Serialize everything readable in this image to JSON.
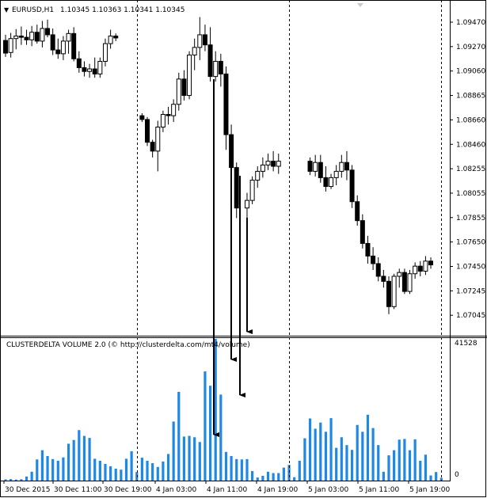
{
  "header": {
    "symbol": "EURUSD,H1",
    "ohlc": "1.10345 1.10363 1.10341 1.10345",
    "indicator": "CLUSTERDELTA VOLUME 2.0 (© http://clusterdelta.com/mt4/volume)"
  },
  "chart_data": [
    {
      "type": "candlestick",
      "title": "EURUSD,H1",
      "ylim": [
        1.0695,
        1.0958
      ],
      "y_ticks": [
        "1.09470",
        "1.09270",
        "1.09060",
        "1.08865",
        "1.08660",
        "1.08460",
        "1.08255",
        "1.08055",
        "1.07855",
        "1.07650",
        "1.07450",
        "1.07245",
        "1.07045"
      ],
      "candles": [
        {
          "o": 1.09285,
          "h": 1.0933,
          "l": 1.09155,
          "c": 1.09185
        },
        {
          "o": 1.0919,
          "h": 1.09345,
          "l": 1.0915,
          "c": 1.093
        },
        {
          "o": 1.093,
          "h": 1.09375,
          "l": 1.09215,
          "c": 1.0932
        },
        {
          "o": 1.0932,
          "h": 1.09395,
          "l": 1.0925,
          "c": 1.0931
        },
        {
          "o": 1.0931,
          "h": 1.0937,
          "l": 1.0925,
          "c": 1.0929
        },
        {
          "o": 1.0929,
          "h": 1.094,
          "l": 1.0924,
          "c": 1.0935
        },
        {
          "o": 1.0935,
          "h": 1.0941,
          "l": 1.0926,
          "c": 1.0928
        },
        {
          "o": 1.0928,
          "h": 1.0944,
          "l": 1.0923,
          "c": 1.0938
        },
        {
          "o": 1.0938,
          "h": 1.0945,
          "l": 1.0931,
          "c": 1.0933
        },
        {
          "o": 1.0933,
          "h": 1.0938,
          "l": 1.0917,
          "c": 1.0921
        },
        {
          "o": 1.0921,
          "h": 1.093,
          "l": 1.0914,
          "c": 1.0918
        },
        {
          "o": 1.0918,
          "h": 1.0932,
          "l": 1.0913,
          "c": 1.0928
        },
        {
          "o": 1.0928,
          "h": 1.0937,
          "l": 1.0918,
          "c": 1.0934
        },
        {
          "o": 1.0934,
          "h": 1.0939,
          "l": 1.0912,
          "c": 1.0914
        },
        {
          "o": 1.0914,
          "h": 1.092,
          "l": 1.0903,
          "c": 1.0907
        },
        {
          "o": 1.0907,
          "h": 1.0912,
          "l": 1.09,
          "c": 1.0904
        },
        {
          "o": 1.0904,
          "h": 1.091,
          "l": 1.0899,
          "c": 1.0906
        },
        {
          "o": 1.0906,
          "h": 1.0915,
          "l": 1.0899,
          "c": 1.0902
        },
        {
          "o": 1.0902,
          "h": 1.0915,
          "l": 1.0899,
          "c": 1.0912
        },
        {
          "o": 1.0912,
          "h": 1.093,
          "l": 1.0908,
          "c": 1.0926
        },
        {
          "o": 1.0926,
          "h": 1.0937,
          "l": 1.0922,
          "c": 1.0932
        },
        {
          "o": 1.0932,
          "h": 1.0934,
          "l": 1.0928,
          "c": 1.09305
        },
        {
          "o": 1.0869,
          "h": 1.0871,
          "l": 1.0864,
          "c": 1.0866
        },
        {
          "o": 1.0866,
          "h": 1.0868,
          "l": 1.0845,
          "c": 1.0848
        },
        {
          "o": 1.0848,
          "h": 1.085,
          "l": 1.0836,
          "c": 1.0841
        },
        {
          "o": 1.0841,
          "h": 1.0865,
          "l": 1.0825,
          "c": 1.086
        },
        {
          "o": 1.086,
          "h": 1.0873,
          "l": 1.0856,
          "c": 1.087
        },
        {
          "o": 1.087,
          "h": 1.0876,
          "l": 1.0862,
          "c": 1.0869
        },
        {
          "o": 1.0869,
          "h": 1.0882,
          "l": 1.0864,
          "c": 1.0878
        },
        {
          "o": 1.0878,
          "h": 1.0903,
          "l": 1.0873,
          "c": 1.0898
        },
        {
          "o": 1.0898,
          "h": 1.0905,
          "l": 1.0881,
          "c": 1.0885
        },
        {
          "o": 1.0885,
          "h": 1.092,
          "l": 1.0882,
          "c": 1.0917
        },
        {
          "o": 1.0917,
          "h": 1.093,
          "l": 1.0905,
          "c": 1.0923
        },
        {
          "o": 1.0923,
          "h": 1.0947,
          "l": 1.0913,
          "c": 1.0933
        },
        {
          "o": 1.0933,
          "h": 1.0941,
          "l": 1.092,
          "c": 1.0925
        },
        {
          "o": 1.0925,
          "h": 1.0939,
          "l": 1.0896,
          "c": 1.09
        },
        {
          "o": 1.09,
          "h": 1.092,
          "l": 1.0896,
          "c": 1.0912
        },
        {
          "o": 1.0912,
          "h": 1.0918,
          "l": 1.0892,
          "c": 1.0902
        },
        {
          "o": 1.0902,
          "h": 1.0908,
          "l": 1.0842,
          "c": 1.0854
        },
        {
          "o": 1.0854,
          "h": 1.0862,
          "l": 1.0822,
          "c": 1.0828
        },
        {
          "o": 1.0828,
          "h": 1.0832,
          "l": 1.0788,
          "c": 1.0796
        },
        {
          "o": 1.0796,
          "h": 1.0808,
          "l": 1.0786,
          "c": 1.0802
        },
        {
          "o": 1.0802,
          "h": 1.0821,
          "l": 1.0799,
          "c": 1.0818
        },
        {
          "o": 1.0818,
          "h": 1.0829,
          "l": 1.0812,
          "c": 1.0825
        },
        {
          "o": 1.0825,
          "h": 1.0836,
          "l": 1.082,
          "c": 1.083
        },
        {
          "o": 1.083,
          "h": 1.0839,
          "l": 1.0826,
          "c": 1.0833
        },
        {
          "o": 1.0833,
          "h": 1.0841,
          "l": 1.0825,
          "c": 1.0829
        },
        {
          "o": 1.0829,
          "h": 1.0839,
          "l": 1.0823,
          "c": 1.0833
        },
        {
          "o": 1.0833,
          "h": 1.0836,
          "l": 1.0822,
          "c": 1.0825
        },
        {
          "o": 1.0825,
          "h": 1.0838,
          "l": 1.0821,
          "c": 1.0832
        },
        {
          "o": 1.0832,
          "h": 1.0838,
          "l": 1.0816,
          "c": 1.082
        },
        {
          "o": 1.082,
          "h": 1.0829,
          "l": 1.0809,
          "c": 1.0813
        },
        {
          "o": 1.0813,
          "h": 1.0823,
          "l": 1.0811,
          "c": 1.082
        },
        {
          "o": 1.082,
          "h": 1.083,
          "l": 1.0814,
          "c": 1.0825
        },
        {
          "o": 1.0825,
          "h": 1.0838,
          "l": 1.082,
          "c": 1.0832
        },
        {
          "o": 1.0832,
          "h": 1.0841,
          "l": 1.0818,
          "c": 1.0826
        },
        {
          "o": 1.0826,
          "h": 1.083,
          "l": 1.0796,
          "c": 1.0801
        },
        {
          "o": 1.0801,
          "h": 1.0806,
          "l": 1.0782,
          "c": 1.0786
        },
        {
          "o": 1.0786,
          "h": 1.0791,
          "l": 1.0764,
          "c": 1.0768
        },
        {
          "o": 1.0768,
          "h": 1.0774,
          "l": 1.0752,
          "c": 1.0758
        },
        {
          "o": 1.0758,
          "h": 1.0765,
          "l": 1.0747,
          "c": 1.0752
        },
        {
          "o": 1.0752,
          "h": 1.0757,
          "l": 1.0738,
          "c": 1.0742
        },
        {
          "o": 1.0742,
          "h": 1.0747,
          "l": 1.0733,
          "c": 1.0738
        },
        {
          "o": 1.0738,
          "h": 1.0742,
          "l": 1.0712,
          "c": 1.0718
        },
        {
          "o": 1.0718,
          "h": 1.0744,
          "l": 1.0716,
          "c": 1.0742
        },
        {
          "o": 1.0742,
          "h": 1.0748,
          "l": 1.0733,
          "c": 1.0745
        },
        {
          "o": 1.0745,
          "h": 1.0748,
          "l": 1.0728,
          "c": 1.073
        },
        {
          "o": 1.073,
          "h": 1.0747,
          "l": 1.0728,
          "c": 1.0744
        },
        {
          "o": 1.0744,
          "h": 1.0753,
          "l": 1.074,
          "c": 1.075
        },
        {
          "o": 1.075,
          "h": 1.0754,
          "l": 1.0742,
          "c": 1.0746
        },
        {
          "o": 1.0746,
          "h": 1.0758,
          "l": 1.0743,
          "c": 1.0754
        },
        {
          "o": 1.0754,
          "h": 1.0757,
          "l": 1.0748,
          "c": 1.0751
        }
      ]
    },
    {
      "type": "bar",
      "title": "CLUSTERDELTA VOLUME 2.0 (© http://clusterdelta.com/mt4/volume)",
      "color": "#1e88e5",
      "ylim": [
        0,
        41528
      ],
      "y_ticks": [
        "41528",
        "0"
      ],
      "x_ticks": [
        "30 Dec 2015",
        "30 Dec 11:00",
        "30 Dec 19:00",
        "4 Jan 03:00",
        "4 Jan 11:00",
        "4 Jan 19:00",
        "5 Jan 03:00",
        "5 Jan 11:00",
        "5 Jan 19:00"
      ],
      "values": [
        350,
        450,
        300,
        400,
        1200,
        2600,
        6200,
        8900,
        7200,
        6300,
        5800,
        6800,
        10800,
        11900,
        14800,
        13100,
        12500,
        6400,
        5800,
        4900,
        4200,
        3500,
        3200,
        6400,
        8600,
        2500,
        6700,
        5800,
        5100,
        4000,
        5600,
        7800,
        17300,
        26000,
        12900,
        13100,
        12700,
        11300,
        32000,
        27800,
        41528,
        25200,
        8400,
        7200,
        6300,
        6200,
        6300,
        2800,
        900,
        1400,
        2600,
        2200,
        2200,
        3800,
        4600,
        1000,
        5800,
        12400,
        18200,
        15200,
        17000,
        14300,
        18300,
        9600,
        12700,
        10400,
        9000,
        16300,
        14300,
        19300,
        15400,
        10400,
        2600,
        7400,
        8900,
        12000,
        12200,
        8900,
        12100,
        5800,
        7600,
        1500,
        2500,
        800
      ]
    }
  ],
  "separators_x": [
    "30 Dec 19:00",
    "4 Jan 19:00",
    "5 Jan 19:00"
  ],
  "annotations": [
    {
      "type": "arrow",
      "from_candle": 35,
      "to_bar": 26
    },
    {
      "type": "arrow",
      "from_candle": 38,
      "to_bar": 38
    },
    {
      "type": "arrow",
      "from_candle": 39,
      "to_bar": 39
    },
    {
      "type": "arrow",
      "from_candle": 40,
      "to_bar": 40
    }
  ]
}
